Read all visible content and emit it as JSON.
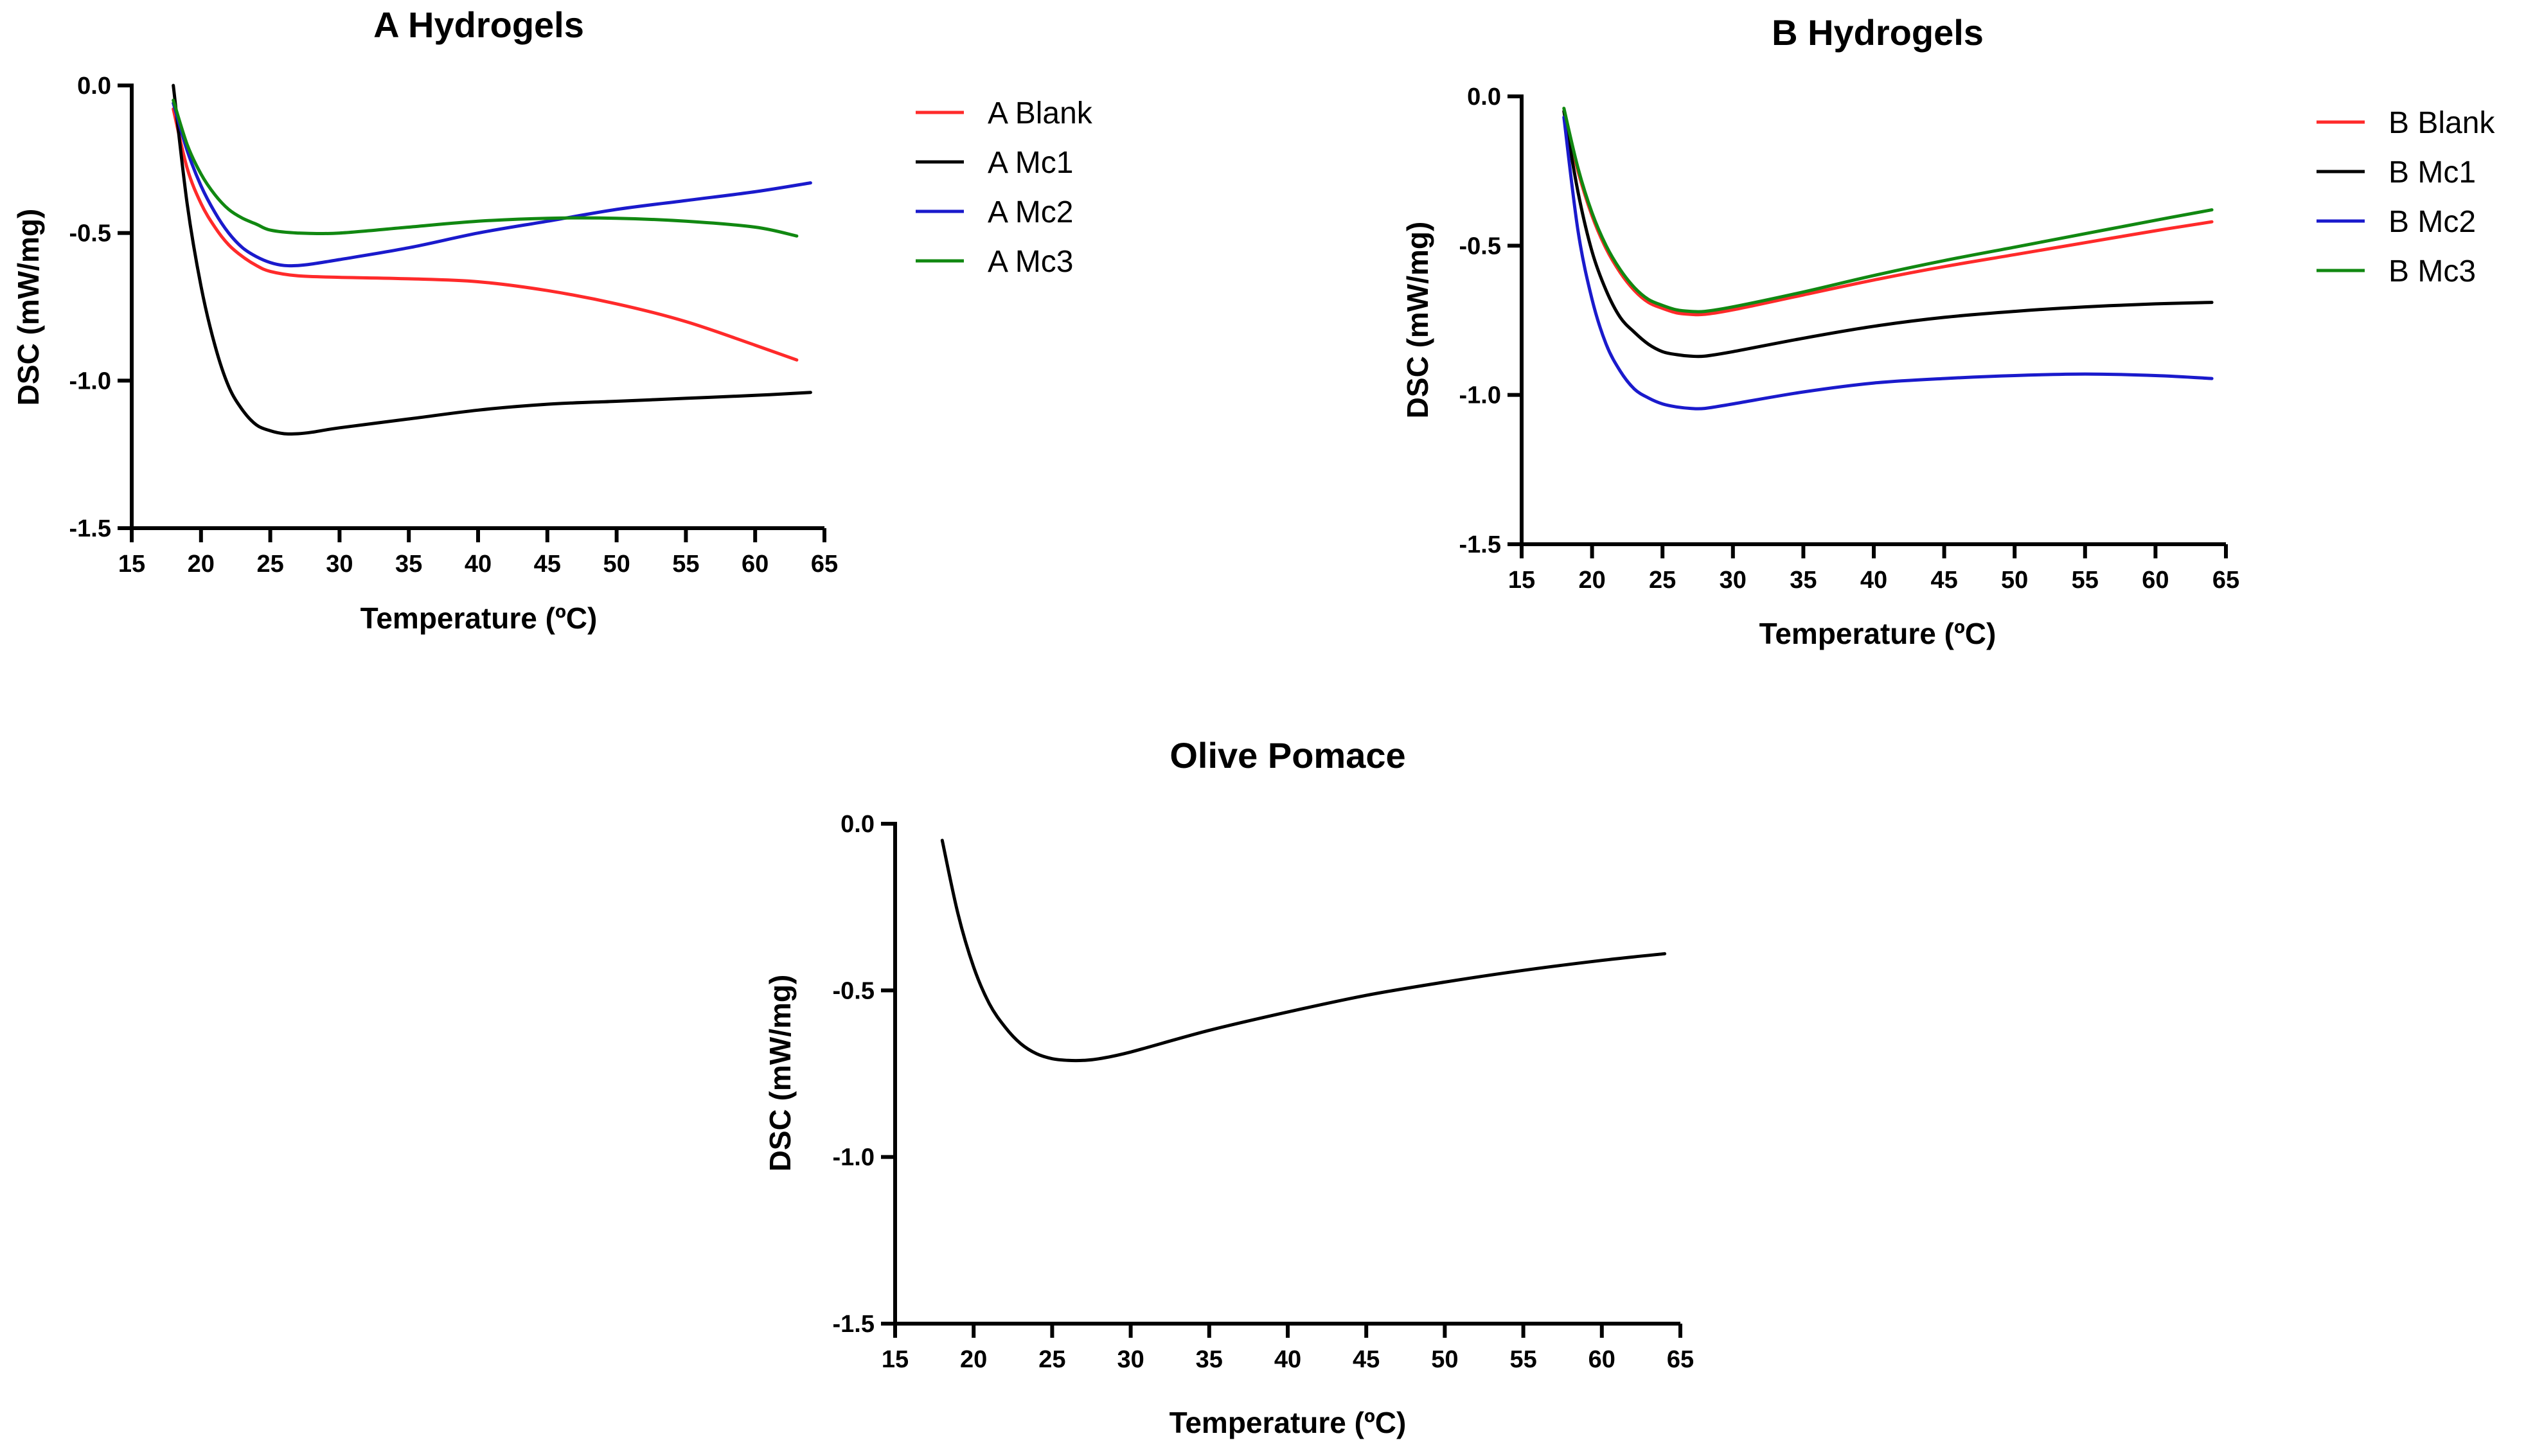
{
  "chart_data": [
    {
      "id": "a",
      "type": "line",
      "title": "A Hydrogels",
      "xlabel": "Temperature (ºC)",
      "ylabel": "DSC (mW/mg)",
      "xlim": [
        15,
        65
      ],
      "ylim": [
        -1.5,
        0.0
      ],
      "xticks": [
        15,
        20,
        25,
        30,
        35,
        40,
        45,
        50,
        55,
        60,
        65
      ],
      "xtick_labels": [
        "15",
        "20",
        "25",
        "30",
        "35",
        "40",
        "45",
        "50",
        "55",
        "60",
        "65"
      ],
      "yticks": [
        0.0,
        -0.5,
        -1.0,
        -1.5
      ],
      "ytick_labels": [
        "0.0",
        "-0.5",
        "-1.0",
        "-1.5"
      ],
      "grid": false,
      "legend_position": "right",
      "series": [
        {
          "name": "A Blank",
          "color": "#ff2a2a",
          "x": [
            18,
            19,
            20,
            21,
            22,
            23,
            24,
            25,
            27,
            30,
            35,
            40,
            45,
            50,
            55,
            60,
            63
          ],
          "y": [
            -0.08,
            -0.28,
            -0.4,
            -0.48,
            -0.54,
            -0.58,
            -0.61,
            -0.63,
            -0.645,
            -0.65,
            -0.655,
            -0.665,
            -0.695,
            -0.74,
            -0.8,
            -0.88,
            -0.93
          ]
        },
        {
          "name": "A Mc1",
          "color": "#000000",
          "x": [
            18,
            19,
            20,
            21,
            22,
            23,
            24,
            25,
            26,
            27,
            28,
            30,
            35,
            40,
            45,
            50,
            55,
            60,
            64
          ],
          "y": [
            0.0,
            -0.4,
            -0.68,
            -0.88,
            -1.02,
            -1.1,
            -1.15,
            -1.17,
            -1.18,
            -1.18,
            -1.175,
            -1.16,
            -1.13,
            -1.1,
            -1.08,
            -1.07,
            -1.06,
            -1.05,
            -1.04
          ]
        },
        {
          "name": "A Mc2",
          "color": "#1a1acc",
          "x": [
            18,
            19,
            20,
            21,
            22,
            23,
            24,
            25,
            26,
            27,
            28,
            30,
            35,
            40,
            45,
            50,
            55,
            60,
            64
          ],
          "y": [
            -0.06,
            -0.22,
            -0.34,
            -0.43,
            -0.5,
            -0.55,
            -0.58,
            -0.6,
            -0.61,
            -0.61,
            -0.605,
            -0.59,
            -0.55,
            -0.5,
            -0.46,
            -0.42,
            -0.39,
            -0.36,
            -0.33
          ]
        },
        {
          "name": "A Mc3",
          "color": "#118811",
          "x": [
            18,
            19,
            20,
            21,
            22,
            23,
            24,
            25,
            27,
            30,
            35,
            40,
            45,
            50,
            55,
            60,
            63
          ],
          "y": [
            -0.05,
            -0.2,
            -0.3,
            -0.37,
            -0.42,
            -0.45,
            -0.47,
            -0.49,
            -0.5,
            -0.5,
            -0.48,
            -0.46,
            -0.45,
            -0.45,
            -0.46,
            -0.48,
            -0.51
          ]
        }
      ]
    },
    {
      "id": "b",
      "type": "line",
      "title": "B Hydrogels",
      "xlabel": "Temperature (ºC)",
      "ylabel": "DSC (mW/mg)",
      "xlim": [
        15,
        65
      ],
      "ylim": [
        -1.5,
        0.0
      ],
      "xticks": [
        15,
        20,
        25,
        30,
        35,
        40,
        45,
        50,
        55,
        60,
        65
      ],
      "xtick_labels": [
        "15",
        "20",
        "25",
        "30",
        "35",
        "40",
        "45",
        "50",
        "55",
        "60",
        "65"
      ],
      "yticks": [
        0.0,
        -0.5,
        -1.0,
        -1.5
      ],
      "ytick_labels": [
        "0.0",
        "-0.5",
        "-1.0",
        "-1.5"
      ],
      "grid": false,
      "legend_position": "right",
      "series": [
        {
          "name": "B Blank",
          "color": "#ff2a2a",
          "x": [
            18,
            19,
            20,
            21,
            22,
            23,
            24,
            25,
            26,
            27,
            28,
            30,
            35,
            40,
            45,
            50,
            55,
            60,
            64
          ],
          "y": [
            -0.05,
            -0.25,
            -0.4,
            -0.51,
            -0.59,
            -0.65,
            -0.69,
            -0.71,
            -0.725,
            -0.73,
            -0.73,
            -0.715,
            -0.665,
            -0.615,
            -0.57,
            -0.53,
            -0.49,
            -0.45,
            -0.42
          ]
        },
        {
          "name": "B Mc1",
          "color": "#000000",
          "x": [
            18,
            19,
            20,
            21,
            22,
            23,
            24,
            25,
            26,
            27,
            28,
            30,
            35,
            40,
            45,
            50,
            55,
            60,
            64
          ],
          "y": [
            -0.05,
            -0.32,
            -0.52,
            -0.65,
            -0.74,
            -0.79,
            -0.83,
            -0.855,
            -0.865,
            -0.87,
            -0.87,
            -0.855,
            -0.81,
            -0.77,
            -0.74,
            -0.72,
            -0.705,
            -0.695,
            -0.69
          ]
        },
        {
          "name": "B Mc2",
          "color": "#1a1acc",
          "x": [
            18,
            19,
            20,
            21,
            22,
            23,
            24,
            25,
            26,
            27,
            28,
            30,
            35,
            40,
            45,
            50,
            55,
            60,
            64
          ],
          "y": [
            -0.07,
            -0.45,
            -0.68,
            -0.83,
            -0.92,
            -0.98,
            -1.01,
            -1.03,
            -1.04,
            -1.045,
            -1.045,
            -1.03,
            -0.99,
            -0.96,
            -0.945,
            -0.935,
            -0.93,
            -0.935,
            -0.945
          ]
        },
        {
          "name": "B Mc3",
          "color": "#118811",
          "x": [
            18,
            19,
            20,
            21,
            22,
            23,
            24,
            25,
            26,
            27,
            28,
            30,
            35,
            40,
            45,
            50,
            55,
            60,
            64
          ],
          "y": [
            -0.04,
            -0.24,
            -0.39,
            -0.5,
            -0.58,
            -0.64,
            -0.68,
            -0.7,
            -0.715,
            -0.72,
            -0.72,
            -0.705,
            -0.655,
            -0.6,
            -0.55,
            -0.505,
            -0.46,
            -0.415,
            -0.38
          ]
        }
      ]
    },
    {
      "id": "c",
      "type": "line",
      "title": "Olive Pomace",
      "xlabel": "Temperature (ºC)",
      "ylabel": "DSC (mW/mg)",
      "xlim": [
        15,
        65
      ],
      "ylim": [
        -1.5,
        0.0
      ],
      "xticks": [
        15,
        20,
        25,
        30,
        35,
        40,
        45,
        50,
        55,
        60,
        65
      ],
      "xtick_labels": [
        "15",
        "20",
        "25",
        "30",
        "35",
        "40",
        "45",
        "50",
        "55",
        "60",
        "65"
      ],
      "yticks": [
        0.0,
        -0.5,
        -1.0,
        -1.5
      ],
      "ytick_labels": [
        "0.0",
        "-0.5",
        "-1.0",
        "-1.5"
      ],
      "grid": false,
      "legend_position": "none",
      "series": [
        {
          "name": "Olive Pomace",
          "color": "#000000",
          "x": [
            18,
            19,
            20,
            21,
            22,
            23,
            24,
            25,
            26,
            27,
            28,
            30,
            35,
            40,
            45,
            50,
            55,
            60,
            64
          ],
          "y": [
            -0.05,
            -0.27,
            -0.43,
            -0.54,
            -0.61,
            -0.66,
            -0.69,
            -0.705,
            -0.71,
            -0.71,
            -0.705,
            -0.685,
            -0.62,
            -0.565,
            -0.515,
            -0.475,
            -0.44,
            -0.41,
            -0.39
          ]
        }
      ]
    }
  ]
}
